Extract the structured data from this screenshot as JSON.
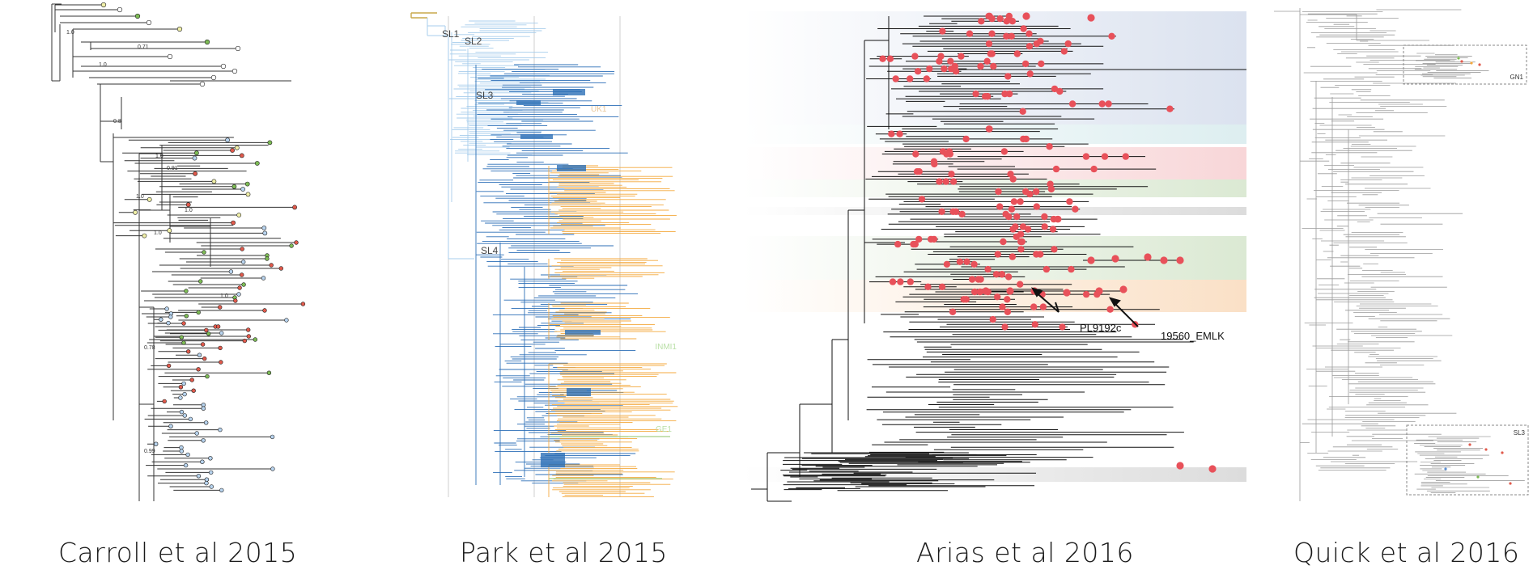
{
  "captions": {
    "carroll": "Carroll et al 2015",
    "park": "Park et al 2015",
    "arias": "Arias et al 2016",
    "quick": "Quick et al 2016"
  },
  "carroll": {
    "support_values": [
      "1.0",
      "0.71",
      "1.0",
      "0.8",
      "1.0",
      "0.91",
      "1.0",
      "1.0",
      "1.0",
      "1.0",
      "0.78",
      "0.99"
    ]
  },
  "park": {
    "sublineages": [
      "SL1",
      "SL2",
      "SL3",
      "SL4"
    ],
    "clusters": [
      "UK1",
      "INMI1",
      "GE1"
    ]
  },
  "arias": {
    "annotations": [
      "PL9192c",
      "19560_EMLK"
    ]
  },
  "quick": {
    "insets": [
      "GN1",
      "SL3"
    ]
  },
  "colors": {
    "tree_black": "#111111",
    "park_light_blue": "#a7cdec",
    "park_blue": "#2c6fb7",
    "park_orange": "#f4a93f",
    "park_green": "#8cc56a",
    "park_gold": "#c9a84c",
    "arias_red": "#e8515a",
    "quick_grey": "#9a9a9a"
  }
}
